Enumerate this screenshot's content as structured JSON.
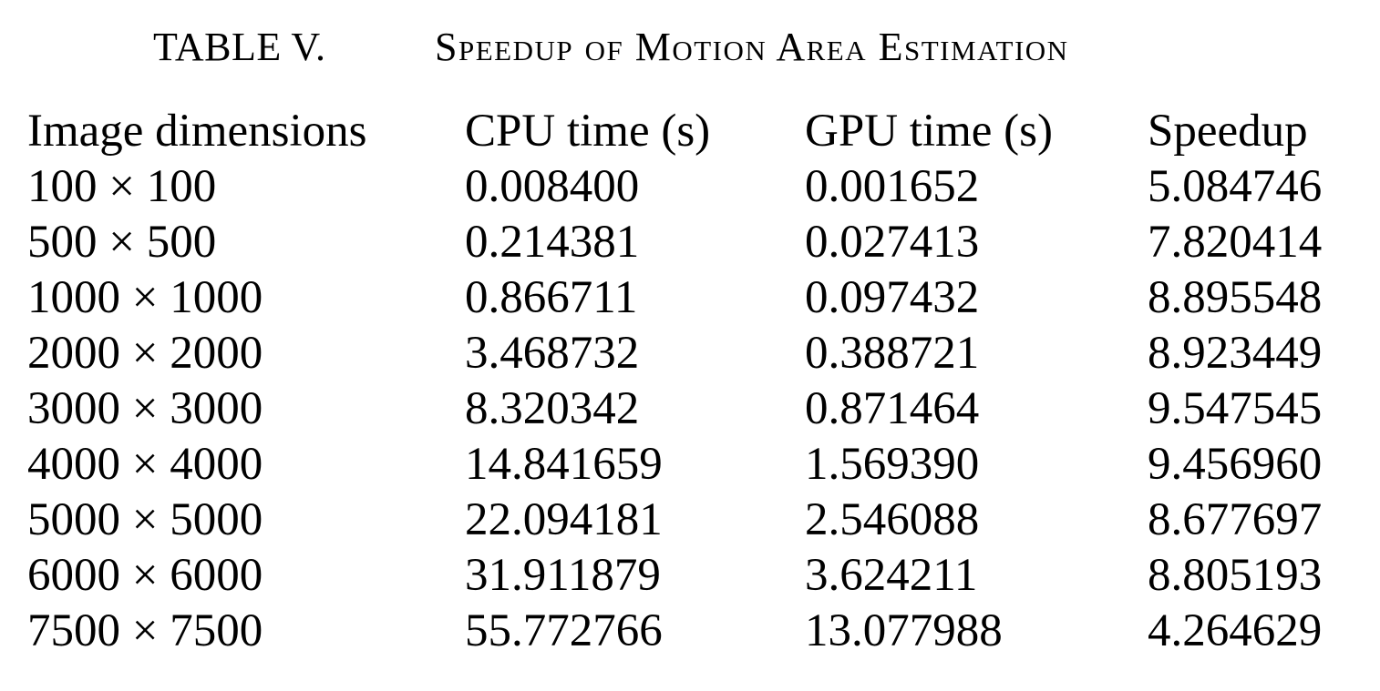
{
  "caption": {
    "label": "TABLE V.",
    "title": "Speedup of Motion Area Estimation"
  },
  "table": {
    "headers": [
      "Image dimensions",
      "CPU time (s)",
      "GPU time (s)",
      "Speedup"
    ],
    "rows": [
      [
        "100 × 100",
        "0.008400",
        "0.001652",
        "5.084746"
      ],
      [
        "500 × 500",
        "0.214381",
        "0.027413",
        "7.820414"
      ],
      [
        "1000 × 1000",
        "0.866711",
        "0.097432",
        "8.895548"
      ],
      [
        "2000 × 2000",
        "3.468732",
        "0.388721",
        "8.923449"
      ],
      [
        "3000 × 3000",
        "8.320342",
        "0.871464",
        "9.547545"
      ],
      [
        "4000 × 4000",
        "14.841659",
        "1.569390",
        "9.456960"
      ],
      [
        "5000 × 5000",
        "22.094181",
        "2.546088",
        "8.677697"
      ],
      [
        "6000 × 6000",
        "31.911879",
        "3.624211",
        "8.805193"
      ],
      [
        "7500 × 7500",
        "55.772766",
        "13.077988",
        "4.264629"
      ]
    ]
  }
}
